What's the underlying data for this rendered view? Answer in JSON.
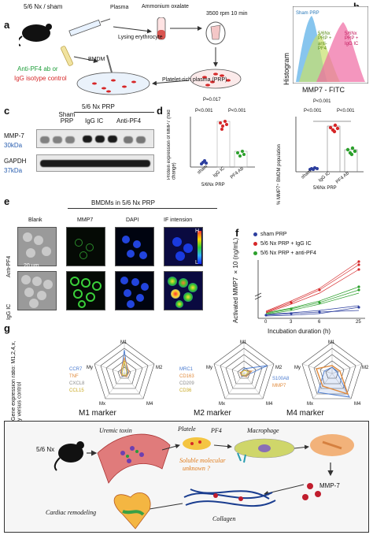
{
  "panels": {
    "a": "a",
    "b": "b",
    "c": "c",
    "d": "d",
    "e": "e",
    "f": "f",
    "g": "g",
    "h": "h"
  },
  "a": {
    "model": "5/6 Nx / sham",
    "plasma": "Plasma",
    "ammonium": "Ammonium oxalate",
    "spin": "3500 rpm 10 min",
    "lysing": "Lysing erythrocyte",
    "bmdm": "BMDM",
    "prp": "Platelet-rich plasma (PRP)",
    "treat1": "Anti-PF4 ab or",
    "treat2": "IgG isotype control"
  },
  "b": {
    "ylabel": "Histogram",
    "xlabel": "MMP7 - FITC",
    "sham": "Sham PRP",
    "anti": "5/6Nx PRP + anti-PF4",
    "igg": "5/6Nx PRP + IgG IC",
    "pval1": "P<0.001",
    "pval2": "P<0.001",
    "pval3": "P<0.001",
    "ylab2": "% MMP7⁺ BMDM population",
    "groups": [
      "sham",
      "IgG IC",
      "PF4 Ab"
    ],
    "xgroup": "5/6Nx PRP"
  },
  "c": {
    "hdr": "5/6 Nx PRP",
    "cols": [
      "Sham PRP",
      "IgG IC",
      "Anti-PF4"
    ],
    "mmp7": "MMP-7",
    "mmp7kd": "30kDa",
    "gapdh": "GAPDH",
    "gapdhkd": "37kDa"
  },
  "d": {
    "p1": "P=0.017",
    "p2": "P<0.001",
    "p3": "P<0.001",
    "ylabel": "Protein expression of MMP7 (fold change)",
    "groups": [
      "sham",
      "IgG IC",
      "PF4 Ab"
    ],
    "xgroup": "5/6Nx PRP"
  },
  "e": {
    "title": "BMDMs in 5/6 Nx PRP",
    "cols": [
      "Blank",
      "MMP7",
      "DAPI",
      "IF intension"
    ],
    "rows": [
      "Anti-PF4",
      "IgG IC"
    ],
    "scale": "20 μm",
    "hi": "H",
    "lo": "L"
  },
  "f": {
    "legend": [
      "sham PRP",
      "5/6 Nx PRP + IgG IC",
      "5/6 Nx PRP + anti-PF4"
    ],
    "colors": [
      "#2c3e9e",
      "#d62728",
      "#2ca02c"
    ],
    "ylabel": "Activated MMP7 ×10 (ng/mL)",
    "xlabel": "Incubation duration (h)",
    "xticks": [
      "0",
      "3",
      "6",
      "25"
    ],
    "yticks": [
      "0",
      "1",
      "2",
      "3",
      "4",
      "5"
    ]
  },
  "g": {
    "ylabel": "Gene expression ratio: M1,2,4,x, y versus control",
    "titles": [
      "M1 marker",
      "M2 marker",
      "M4 marker"
    ],
    "axes": [
      "M1",
      "M2",
      "M4",
      "Mx",
      "My"
    ],
    "legend1": [
      "CCR7",
      "TNF",
      "CXCL8",
      "CCL15"
    ],
    "legend2": [
      "MRC1",
      "CD163",
      "CD209",
      "CD36"
    ],
    "legend3": [
      "S100A8",
      "MMP7"
    ],
    "colors1": [
      "#4a7bd0",
      "#e08a3c",
      "#8c8c8c",
      "#e3c53a"
    ],
    "colors2": [
      "#4a7bd0",
      "#e08a3c",
      "#8c8c8c",
      "#e3c53a"
    ],
    "colors3": [
      "#4a7bd0",
      "#e08a3c"
    ],
    "ticks1": [
      "2",
      "4",
      "6",
      "8",
      "10"
    ],
    "ticks2": [
      "2",
      "4",
      "6",
      "8",
      "10",
      "12"
    ],
    "ticks3": [
      "5",
      "10",
      "15",
      "20",
      "25"
    ]
  },
  "h": {
    "model": "5/6 Nx",
    "uremic": "Uremic toxin",
    "platelet": "Platele",
    "pf4": "PF4",
    "macrophage": "Macrophage",
    "soluble1": "Soluble molecular",
    "soluble2": "unknown ?",
    "mmp7": "MMP-7",
    "collagen": "Collagen",
    "remodel": "Cardiac remodeling"
  }
}
